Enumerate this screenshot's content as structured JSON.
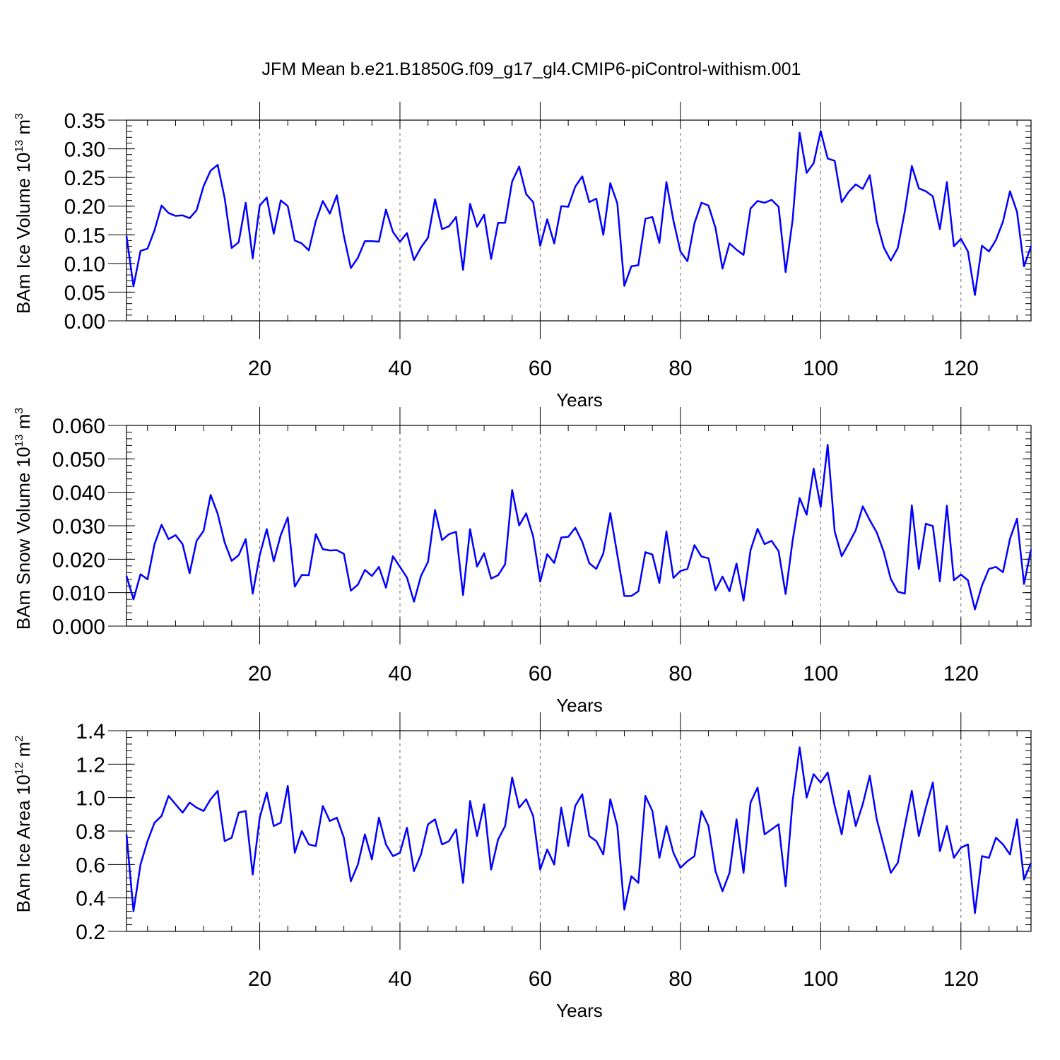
{
  "title": "JFM Mean b.e21.B1850G.f09_g17_gl4.CMIP6-piControl-withism.001",
  "colors": {
    "line": "#0000ff",
    "axis": "#000000",
    "grid": "#666666"
  },
  "chart_data": [
    {
      "type": "line",
      "name": "ice-volume",
      "ylabel": "BAm Ice Volume",
      "ylabel_scale": "10",
      "ylabel_exp": "13",
      "ylabel_unit": "m",
      "ylabel_unit_exp": "3",
      "xlabel": "Years",
      "xlim": [
        1,
        130
      ],
      "ylim": [
        0.0,
        0.35
      ],
      "xticks": [
        20,
        40,
        60,
        80,
        100,
        120
      ],
      "xtick_labels": [
        "20",
        "40",
        "60",
        "80",
        "100",
        "120"
      ],
      "yticks": [
        0.0,
        0.05,
        0.1,
        0.15,
        0.2,
        0.25,
        0.3,
        0.35
      ],
      "ytick_labels": [
        "0.00",
        "0.05",
        "0.10",
        "0.15",
        "0.20",
        "0.25",
        "0.30",
        "0.35"
      ],
      "yminor": 0.01,
      "grid_x": true,
      "values": [
        0.148,
        0.06,
        0.122,
        0.126,
        0.158,
        0.201,
        0.188,
        0.183,
        0.184,
        0.179,
        0.193,
        0.235,
        0.262,
        0.272,
        0.214,
        0.127,
        0.137,
        0.206,
        0.109,
        0.201,
        0.215,
        0.152,
        0.21,
        0.2,
        0.14,
        0.135,
        0.123,
        0.174,
        0.209,
        0.187,
        0.219,
        0.148,
        0.092,
        0.11,
        0.139,
        0.139,
        0.138,
        0.194,
        0.155,
        0.138,
        0.153,
        0.106,
        0.128,
        0.145,
        0.212,
        0.16,
        0.165,
        0.181,
        0.089,
        0.204,
        0.164,
        0.185,
        0.108,
        0.171,
        0.171,
        0.243,
        0.269,
        0.221,
        0.207,
        0.131,
        0.177,
        0.135,
        0.2,
        0.199,
        0.234,
        0.252,
        0.207,
        0.213,
        0.15,
        0.24,
        0.205,
        0.061,
        0.095,
        0.097,
        0.178,
        0.181,
        0.136,
        0.242,
        0.175,
        0.121,
        0.104,
        0.17,
        0.206,
        0.201,
        0.162,
        0.091,
        0.135,
        0.124,
        0.115,
        0.196,
        0.209,
        0.206,
        0.211,
        0.199,
        0.085,
        0.176,
        0.328,
        0.258,
        0.275,
        0.331,
        0.283,
        0.279,
        0.207,
        0.225,
        0.238,
        0.23,
        0.254,
        0.173,
        0.128,
        0.105,
        0.127,
        0.191,
        0.27,
        0.231,
        0.226,
        0.217,
        0.16,
        0.242,
        0.13,
        0.143,
        0.121,
        0.045,
        0.131,
        0.121,
        0.141,
        0.173,
        0.226,
        0.19,
        0.095,
        0.13
      ]
    },
    {
      "type": "line",
      "name": "snow-volume",
      "ylabel": "BAm Snow Volume",
      "ylabel_scale": "10",
      "ylabel_exp": "13",
      "ylabel_unit": "m",
      "ylabel_unit_exp": "3",
      "xlabel": "Years",
      "xlim": [
        1,
        130
      ],
      "ylim": [
        0.0,
        0.06
      ],
      "xticks": [
        20,
        40,
        60,
        80,
        100,
        120
      ],
      "xtick_labels": [
        "20",
        "40",
        "60",
        "80",
        "100",
        "120"
      ],
      "yticks": [
        0.0,
        0.01,
        0.02,
        0.03,
        0.04,
        0.05,
        0.06
      ],
      "ytick_labels": [
        "0.000",
        "0.010",
        "0.020",
        "0.030",
        "0.040",
        "0.050",
        "0.060"
      ],
      "yminor": 0.002,
      "grid_x": true,
      "values": [
        0.015,
        0.008,
        0.0155,
        0.014,
        0.0245,
        0.0303,
        0.026,
        0.0272,
        0.0245,
        0.0158,
        0.0255,
        0.0285,
        0.0392,
        0.0336,
        0.025,
        0.0195,
        0.0212,
        0.026,
        0.0097,
        0.0212,
        0.029,
        0.0194,
        0.0272,
        0.0325,
        0.0118,
        0.0153,
        0.0152,
        0.0275,
        0.023,
        0.0226,
        0.0227,
        0.0216,
        0.0106,
        0.0124,
        0.0168,
        0.015,
        0.0177,
        0.0115,
        0.0209,
        0.0177,
        0.0145,
        0.0073,
        0.015,
        0.0192,
        0.0347,
        0.0257,
        0.0275,
        0.0282,
        0.0093,
        0.029,
        0.0178,
        0.0218,
        0.0142,
        0.0152,
        0.0185,
        0.0407,
        0.0301,
        0.0337,
        0.0268,
        0.0133,
        0.0215,
        0.0189,
        0.0265,
        0.0267,
        0.0294,
        0.0252,
        0.0188,
        0.0171,
        0.0217,
        0.0338,
        0.0213,
        0.009,
        0.009,
        0.0104,
        0.0221,
        0.0214,
        0.0129,
        0.0283,
        0.0144,
        0.0165,
        0.0171,
        0.0242,
        0.0208,
        0.0203,
        0.0107,
        0.0148,
        0.0104,
        0.0187,
        0.0076,
        0.0227,
        0.0291,
        0.0245,
        0.0255,
        0.0224,
        0.0096,
        0.0256,
        0.0383,
        0.0333,
        0.0471,
        0.0356,
        0.0542,
        0.0283,
        0.0209,
        0.0247,
        0.0287,
        0.0358,
        0.0317,
        0.028,
        0.0222,
        0.0141,
        0.0103,
        0.0097,
        0.0361,
        0.0171,
        0.0306,
        0.0299,
        0.0134,
        0.036,
        0.0137,
        0.0154,
        0.0137,
        0.005,
        0.0121,
        0.0171,
        0.0177,
        0.0161,
        0.0261,
        0.0321,
        0.0126,
        0.0229
      ]
    },
    {
      "type": "line",
      "name": "ice-area",
      "ylabel": "BAm Ice Area",
      "ylabel_scale": "10",
      "ylabel_exp": "12",
      "ylabel_unit": "m",
      "ylabel_unit_exp": "2",
      "xlabel": "Years",
      "xlim": [
        1,
        130
      ],
      "ylim": [
        0.2,
        1.4
      ],
      "xticks": [
        20,
        40,
        60,
        80,
        100,
        120
      ],
      "xtick_labels": [
        "20",
        "40",
        "60",
        "80",
        "100",
        "120"
      ],
      "yticks": [
        0.2,
        0.4,
        0.6,
        0.8,
        1.0,
        1.2,
        1.4
      ],
      "ytick_labels": [
        "0.2",
        "0.4",
        "0.6",
        "0.8",
        "1.0",
        "1.2",
        "1.4"
      ],
      "yminor": 0.04,
      "grid_x": true,
      "values": [
        0.78,
        0.32,
        0.6,
        0.74,
        0.85,
        0.89,
        1.01,
        0.96,
        0.91,
        0.97,
        0.94,
        0.92,
        0.99,
        1.04,
        0.74,
        0.76,
        0.91,
        0.92,
        0.54,
        0.88,
        1.03,
        0.83,
        0.85,
        1.07,
        0.67,
        0.8,
        0.72,
        0.71,
        0.95,
        0.86,
        0.88,
        0.76,
        0.5,
        0.6,
        0.78,
        0.63,
        0.88,
        0.72,
        0.65,
        0.67,
        0.82,
        0.56,
        0.66,
        0.84,
        0.87,
        0.72,
        0.74,
        0.81,
        0.49,
        0.98,
        0.77,
        0.96,
        0.57,
        0.75,
        0.83,
        1.12,
        0.94,
        0.99,
        0.89,
        0.57,
        0.69,
        0.6,
        0.94,
        0.71,
        0.95,
        1.02,
        0.77,
        0.74,
        0.66,
        0.99,
        0.83,
        0.33,
        0.53,
        0.49,
        1.01,
        0.92,
        0.64,
        0.83,
        0.67,
        0.58,
        0.62,
        0.65,
        0.92,
        0.83,
        0.56,
        0.44,
        0.55,
        0.87,
        0.55,
        0.97,
        1.06,
        0.78,
        0.81,
        0.84,
        0.47,
        0.98,
        1.3,
        1.0,
        1.14,
        1.09,
        1.15,
        0.95,
        0.78,
        1.04,
        0.83,
        0.96,
        1.13,
        0.87,
        0.71,
        0.55,
        0.61,
        0.83,
        1.04,
        0.77,
        0.94,
        1.09,
        0.68,
        0.83,
        0.64,
        0.7,
        0.72,
        0.31,
        0.65,
        0.64,
        0.76,
        0.72,
        0.66,
        0.87,
        0.51,
        0.61
      ]
    }
  ]
}
